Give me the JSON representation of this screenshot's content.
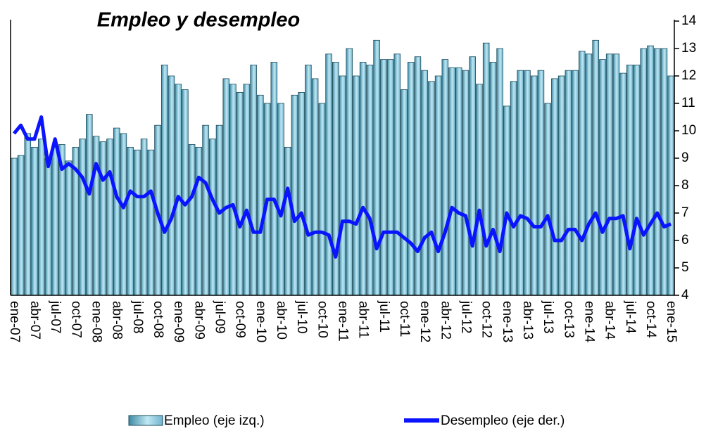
{
  "chart_data": {
    "type": "bar-line",
    "title": "Empleo y desempleo",
    "categories": [
      "ene-07",
      null,
      null,
      "abr-07",
      null,
      null,
      "jul-07",
      null,
      null,
      "oct-07",
      null,
      null,
      "ene-08",
      null,
      null,
      "abr-08",
      null,
      null,
      "jul-08",
      null,
      null,
      "oct-08",
      null,
      null,
      "ene-09",
      null,
      null,
      "abr-09",
      null,
      null,
      "jul-09",
      null,
      null,
      "oct-09",
      null,
      null,
      "ene-10",
      null,
      null,
      "abr-10",
      null,
      null,
      "jul-10",
      null,
      null,
      "oct-10",
      null,
      null,
      "ene-11",
      null,
      null,
      "abr-11",
      null,
      null,
      "jul-11",
      null,
      null,
      "oct-11",
      null,
      null,
      "ene-12",
      null,
      null,
      "abr-12",
      null,
      null,
      "jul-12",
      null,
      null,
      "oct-12",
      null,
      null,
      "ene-13",
      null,
      null,
      "abr-13",
      null,
      null,
      "jul-13",
      null,
      null,
      "oct-13",
      null,
      null,
      "ene-14",
      null,
      null,
      "abr-14",
      null,
      null,
      "jul-14",
      null,
      null,
      "oct-14",
      null,
      null,
      "ene-15"
    ],
    "series": [
      {
        "name": "Empleo (eje izq.)",
        "color": "#7fc3d8",
        "type": "bar",
        "values": [
          9.0,
          9.1,
          9.9,
          9.4,
          9.7,
          9.0,
          9.4,
          9.5,
          8.9,
          9.4,
          9.7,
          10.6,
          9.8,
          9.6,
          9.7,
          10.1,
          9.9,
          9.4,
          9.3,
          9.7,
          9.3,
          10.2,
          12.4,
          12.0,
          11.7,
          11.5,
          9.5,
          9.4,
          10.2,
          9.7,
          10.2,
          11.9,
          11.7,
          11.4,
          11.7,
          12.4,
          11.3,
          11.0,
          12.5,
          11.0,
          9.4,
          11.3,
          11.4,
          12.4,
          11.9,
          11.0,
          12.8,
          12.5,
          12.0,
          13.0,
          12.0,
          12.5,
          12.4,
          13.3,
          12.6,
          12.6,
          12.8,
          11.5,
          12.5,
          12.7,
          12.2,
          11.8,
          12.0,
          12.6,
          12.3,
          12.3,
          12.2,
          12.7,
          11.7,
          13.2,
          12.5,
          13.0,
          10.9,
          11.8,
          12.2,
          12.2,
          12.0,
          12.2,
          11.0,
          11.9,
          12.0,
          12.2,
          12.2,
          12.9,
          12.8,
          13.3,
          12.6,
          12.8,
          12.8,
          12.1,
          12.4,
          12.4,
          13.0,
          13.1,
          13.0,
          13.0,
          12.0
        ]
      },
      {
        "name": "Desempleo (eje der.)",
        "color": "#0a14ff",
        "type": "line",
        "axis": "y2",
        "values": [
          9.9,
          10.2,
          9.7,
          9.7,
          10.5,
          8.7,
          9.7,
          8.6,
          8.8,
          8.6,
          8.3,
          7.7,
          8.8,
          8.2,
          8.5,
          7.6,
          7.2,
          7.8,
          7.6,
          7.6,
          7.8,
          7.0,
          6.3,
          6.8,
          7.6,
          7.3,
          7.6,
          8.3,
          8.1,
          7.5,
          7.0,
          7.2,
          7.3,
          6.5,
          7.1,
          6.3,
          6.3,
          7.5,
          7.5,
          6.9,
          7.9,
          6.7,
          7.0,
          6.2,
          6.3,
          6.3,
          6.2,
          5.4,
          6.7,
          6.7,
          6.6,
          7.2,
          6.8,
          5.7,
          6.3,
          6.3,
          6.3,
          6.1,
          5.9,
          5.6,
          6.1,
          6.3,
          5.6,
          6.3,
          7.2,
          7.0,
          6.9,
          5.8,
          7.1,
          5.8,
          6.4,
          5.6,
          7.0,
          6.5,
          6.9,
          6.8,
          6.5,
          6.5,
          6.9,
          6.0,
          6.0,
          6.4,
          6.4,
          6.0,
          6.6,
          7.0,
          6.3,
          6.8,
          6.8,
          6.9,
          5.7,
          6.8,
          6.2,
          6.6,
          7.0,
          6.5,
          6.6
        ]
      }
    ],
    "ylim": [
      4,
      14
    ],
    "y2lim": [
      4,
      14
    ],
    "y2ticks": [
      4,
      5,
      6,
      7,
      8,
      9,
      10,
      11,
      12,
      13,
      14
    ]
  }
}
